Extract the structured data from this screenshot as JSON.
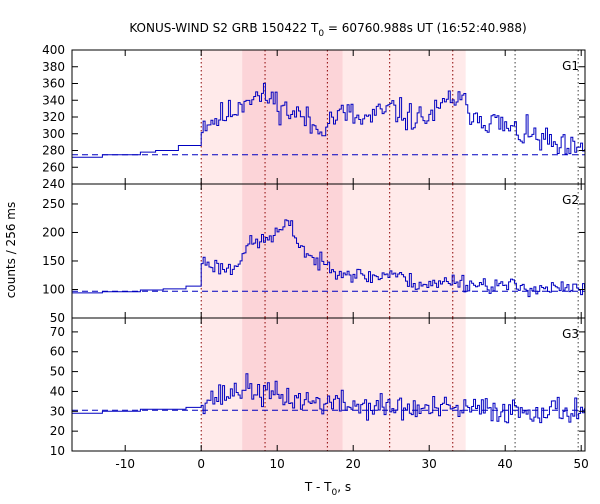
{
  "chart_data": {
    "type": "line",
    "title": {
      "prefix": "KONUS-WIND S2 GRB 150422 T",
      "sub": "0",
      "suffix": " = 60760.988s UT (16:52:40.988)"
    },
    "xlabel": {
      "prefix": "T - T",
      "sub": "0",
      "suffix": ", s"
    },
    "ylabel": "counts / 256 ms",
    "xlim": [
      -17,
      50.5
    ],
    "xticks": [
      -10,
      0,
      10,
      20,
      30,
      40,
      50
    ],
    "xtick_labels": [
      "-10",
      "0",
      "10",
      "20",
      "30",
      "40",
      "50"
    ],
    "colors": {
      "series": "#0000c0",
      "background_level": "#0000c0",
      "marker_lines": "#8b0000",
      "marker_lines_late": "#404040",
      "band_outer": "#ffeaea",
      "band_inner": "#fcd4d8"
    },
    "shaded_intervals": [
      {
        "range": [
          0,
          34.8
        ],
        "tone": "outer"
      },
      {
        "range": [
          5.4,
          18.6
        ],
        "tone": "inner"
      }
    ],
    "marker_lines": [
      0,
      8.4,
      16.6,
      24.8,
      33.1
    ],
    "marker_lines_late": [
      41.3,
      49.6
    ],
    "panels": [
      {
        "name": "G1",
        "ylim": [
          240,
          400
        ],
        "yticks": [
          240,
          260,
          280,
          300,
          320,
          340,
          360,
          380,
          400
        ],
        "ytick_labels": [
          "240",
          "260",
          "280",
          "300",
          "320",
          "340",
          "360",
          "380",
          "400"
        ],
        "background_level": 275,
        "pre_burst_steps": [
          [
            -17,
            272
          ],
          [
            -13,
            275
          ],
          [
            -8,
            278
          ],
          [
            -6,
            280
          ],
          [
            -3,
            286
          ],
          [
            0,
            296
          ]
        ],
        "burst_profile": [
          [
            0,
            312
          ],
          [
            2,
            318
          ],
          [
            4,
            326
          ],
          [
            6,
            345
          ],
          [
            9,
            343
          ],
          [
            11,
            328
          ],
          [
            13,
            322
          ],
          [
            15,
            305
          ],
          [
            17,
            318
          ],
          [
            19,
            325
          ],
          [
            21,
            315
          ],
          [
            23,
            322
          ],
          [
            25,
            330
          ],
          [
            27,
            320
          ],
          [
            29,
            318
          ],
          [
            31,
            325
          ],
          [
            33,
            345
          ],
          [
            35,
            330
          ],
          [
            37,
            318
          ],
          [
            39,
            312
          ],
          [
            41,
            302
          ],
          [
            43,
            298
          ],
          [
            45,
            292
          ],
          [
            47,
            282
          ],
          [
            50,
            278
          ]
        ],
        "noise_amp": 13,
        "seed": 11
      },
      {
        "name": "G2",
        "ylim": [
          50,
          285
        ],
        "yticks": [
          50,
          100,
          150,
          200,
          250
        ],
        "ytick_labels": [
          "50",
          "100",
          "150",
          "200",
          "250"
        ],
        "background_level": 97,
        "pre_burst_steps": [
          [
            -17,
            94
          ],
          [
            -13,
            96
          ],
          [
            -8,
            99
          ],
          [
            -5,
            101
          ],
          [
            -2,
            106
          ],
          [
            0,
            128
          ]
        ],
        "burst_profile": [
          [
            0,
            150
          ],
          [
            2,
            140
          ],
          [
            4,
            135
          ],
          [
            6,
            178
          ],
          [
            8,
            185
          ],
          [
            10,
            200
          ],
          [
            11.5,
            215
          ],
          [
            13,
            175
          ],
          [
            15,
            148
          ],
          [
            17,
            140
          ],
          [
            19,
            130
          ],
          [
            21,
            123
          ],
          [
            23,
            122
          ],
          [
            25,
            130
          ],
          [
            27,
            115
          ],
          [
            29,
            110
          ],
          [
            31,
            108
          ],
          [
            33,
            118
          ],
          [
            35,
            110
          ],
          [
            38,
            108
          ],
          [
            41,
            105
          ],
          [
            45,
            102
          ],
          [
            50,
            100
          ]
        ],
        "noise_amp": 11,
        "seed": 23
      },
      {
        "name": "G3",
        "ylim": [
          10,
          77
        ],
        "yticks": [
          10,
          20,
          30,
          40,
          50,
          60,
          70
        ],
        "ytick_labels": [
          "10",
          "20",
          "30",
          "40",
          "50",
          "60",
          "70"
        ],
        "background_level": 30.5,
        "pre_burst_steps": [
          [
            -17,
            29
          ],
          [
            -13,
            30
          ],
          [
            -8,
            31
          ],
          [
            -5,
            31
          ],
          [
            -2,
            32
          ],
          [
            0,
            35
          ]
        ],
        "burst_profile": [
          [
            0,
            36
          ],
          [
            3,
            38
          ],
          [
            5.5,
            42
          ],
          [
            8,
            39
          ],
          [
            11,
            37
          ],
          [
            14,
            35
          ],
          [
            17,
            34
          ],
          [
            20,
            33
          ],
          [
            24,
            32
          ],
          [
            28,
            31
          ],
          [
            32,
            31
          ],
          [
            36,
            31
          ],
          [
            40,
            30.5
          ],
          [
            45,
            30.5
          ],
          [
            50,
            30.5
          ]
        ],
        "noise_amp": 5,
        "seed": 37
      }
    ]
  }
}
